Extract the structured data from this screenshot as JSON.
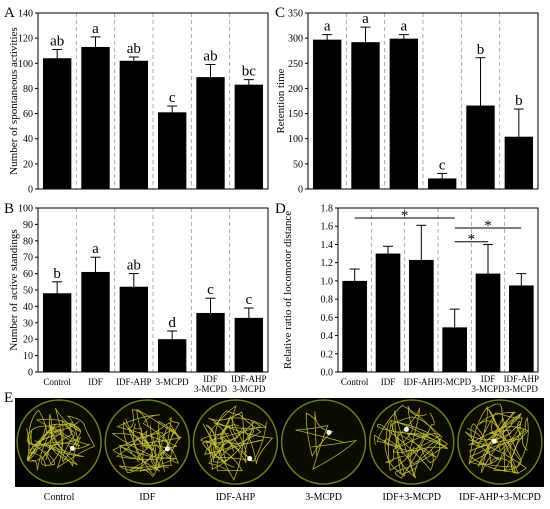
{
  "chart_data": [
    {
      "panel": "A",
      "type": "bar",
      "ylabel": "Number of spontaneous activities",
      "ylim": [
        0,
        140
      ],
      "yticks": [
        0,
        20,
        40,
        60,
        80,
        100,
        120,
        140
      ],
      "categories": [
        "Control",
        "IDF",
        "IDF-AHP",
        "3-MCPD",
        "IDF 3-MCPD",
        "IDF-AHP 3-MCPD"
      ],
      "values": [
        104,
        113,
        102,
        61,
        89,
        83
      ],
      "errors": [
        7,
        8,
        3,
        5,
        10,
        4
      ],
      "labels": [
        "ab",
        "a",
        "ab",
        "c",
        "ab",
        "bc"
      ]
    },
    {
      "panel": "B",
      "type": "bar",
      "ylabel": "Number of active standings",
      "ylim": [
        0,
        100
      ],
      "yticks": [
        0,
        10,
        20,
        30,
        40,
        50,
        60,
        70,
        80,
        90,
        100
      ],
      "categories": [
        "Control",
        "IDF",
        "IDF-AHP",
        "3-MCPD",
        "IDF 3-MCPD",
        "IDF-AHP 3-MCPD"
      ],
      "values": [
        48,
        61,
        52,
        20,
        36,
        33
      ],
      "errors": [
        7,
        9,
        8,
        5,
        9,
        6
      ],
      "labels": [
        "b",
        "a",
        "ab",
        "d",
        "c",
        "c"
      ]
    },
    {
      "panel": "C",
      "type": "bar",
      "ylabel": "Retention time",
      "ylim": [
        0,
        350
      ],
      "yticks": [
        0,
        50,
        100,
        150,
        200,
        250,
        300,
        350
      ],
      "categories": [
        "Control",
        "IDF",
        "IDF-AHP",
        "3-MCPD",
        "IDF 3-MCPD",
        "IDF-AHP 3-MCPD"
      ],
      "values": [
        297,
        292,
        299,
        21,
        166,
        104
      ],
      "errors": [
        10,
        30,
        8,
        10,
        95,
        55
      ],
      "labels": [
        "a",
        "a",
        "a",
        "c",
        "b",
        "b"
      ]
    },
    {
      "panel": "D",
      "type": "bar",
      "ylabel": "Relative ratio of locomotor distance",
      "ylim": [
        0,
        1.8
      ],
      "yticks": [
        0.0,
        0.2,
        0.4,
        0.6,
        0.8,
        1.0,
        1.2,
        1.4,
        1.6,
        1.8
      ],
      "categories": [
        "Control",
        "IDF",
        "IDF-AHP",
        "3-MCPD",
        "IDF 3-MCPD",
        "IDF-AHP 3-MCPD"
      ],
      "values": [
        1.0,
        1.3,
        1.23,
        0.49,
        1.08,
        0.95
      ],
      "errors": [
        0.13,
        0.08,
        0.38,
        0.2,
        0.32,
        0.13
      ],
      "significance": [
        {
          "from": "Control",
          "to": "3-MCPD",
          "label": "*"
        },
        {
          "from": "3-MCPD",
          "to": "IDF 3-MCPD",
          "label": "*"
        },
        {
          "from": "3-MCPD",
          "to": "IDF-AHP 3-MCPD",
          "label": "*"
        }
      ]
    }
  ],
  "panel_e": {
    "label": "E",
    "dishes": [
      "Control",
      "IDF",
      "IDF-AHP",
      "3-MCPD",
      "IDF+3-MCPD",
      "IDF-AHP+3-MCPD"
    ]
  }
}
